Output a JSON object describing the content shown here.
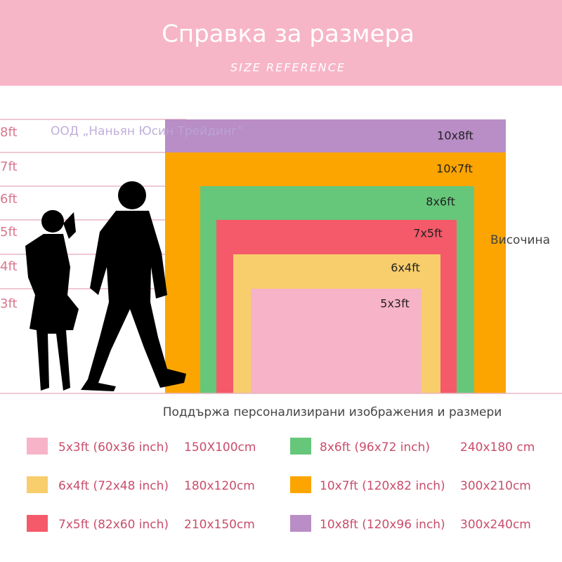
{
  "header": {
    "title": "Справка за размера",
    "subtitle": "SIZE REFERENCE"
  },
  "watermark": "ООД „Наньян Юсин Трейдинг“",
  "height_labels": [
    "8ft",
    "7ft",
    "6ft",
    "5ft",
    "4ft",
    "3ft"
  ],
  "height_caption": "Височина",
  "sizes": [
    {
      "label": "10x8ft",
      "color": "#b98dc6"
    },
    {
      "label": "10x7ft",
      "color": "#fca500"
    },
    {
      "label": "8x6ft",
      "color": "#66c77a"
    },
    {
      "label": "7x5ft",
      "color": "#f45a6a"
    },
    {
      "label": "6x4ft",
      "color": "#f8cd6c"
    },
    {
      "label": "5x3ft",
      "color": "#f7b3c7"
    }
  ],
  "caption": "Поддържа персонализирани изображения и размери",
  "legend": [
    {
      "size": "5x3ft (60x36 inch)",
      "cm": "150X100cm",
      "color": "#f7b3c7"
    },
    {
      "size": "6x4ft (72x48 inch)",
      "cm": "180x120cm",
      "color": "#f8cd6c"
    },
    {
      "size": "7x5ft (82x60 inch)",
      "cm": "210x150cm",
      "color": "#f45a6a"
    },
    {
      "size": "8x6ft (96x72 inch)",
      "cm": "240x180 cm",
      "color": "#66c77a"
    },
    {
      "size": "10x7ft (120x82 inch)",
      "cm": "300x210cm",
      "color": "#fca500"
    },
    {
      "size": "10x8ft (120x96 inch)",
      "cm": "300x240cm",
      "color": "#b98dc6"
    }
  ]
}
